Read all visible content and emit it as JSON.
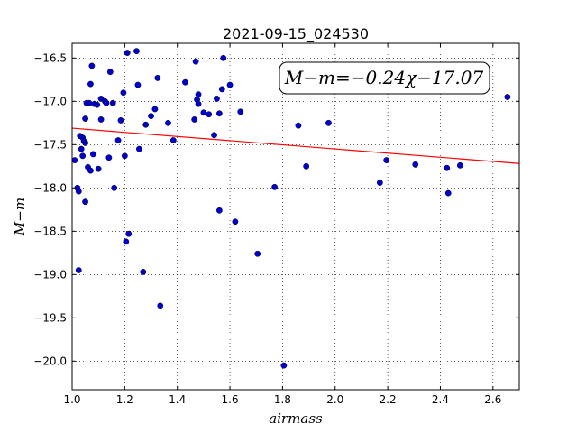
{
  "chart_data": {
    "type": "scatter",
    "title": "2021-09-15_024530",
    "xlabel": "airmass",
    "ylabel": "M−m",
    "xlim": [
      1.0,
      2.7
    ],
    "ylim": [
      -20.33,
      -16.33
    ],
    "xticks": [
      1.0,
      1.2,
      1.4,
      1.6,
      1.8,
      2.0,
      2.2,
      2.4,
      2.6
    ],
    "yticks": [
      -16.5,
      -17.0,
      -17.5,
      -18.0,
      -18.5,
      -19.0,
      -19.5,
      -20.0
    ],
    "xtick_labels": [
      "1.0",
      "1.2",
      "1.4",
      "1.6",
      "1.8",
      "2.0",
      "2.2",
      "2.4",
      "2.6"
    ],
    "ytick_labels": [
      "−16.5",
      "−17.0",
      "−17.5",
      "−18.0",
      "−18.5",
      "−19.0",
      "−19.5",
      "−20.0"
    ],
    "grid": true,
    "annotation": "M−m=−0.24χ−17.07",
    "fit": {
      "slope": -0.24,
      "intercept": -17.07,
      "color": "#ff0000"
    },
    "point_color": "#0000cc",
    "points": [
      [
        1.01,
        -17.68
      ],
      [
        1.02,
        -18.0
      ],
      [
        1.025,
        -18.04
      ],
      [
        1.025,
        -18.95
      ],
      [
        1.03,
        -17.4
      ],
      [
        1.035,
        -17.55
      ],
      [
        1.04,
        -17.63
      ],
      [
        1.04,
        -17.42
      ],
      [
        1.045,
        -17.46
      ],
      [
        1.05,
        -17.48
      ],
      [
        1.05,
        -17.2
      ],
      [
        1.05,
        -18.16
      ],
      [
        1.055,
        -17.02
      ],
      [
        1.06,
        -17.76
      ],
      [
        1.065,
        -17.02
      ],
      [
        1.07,
        -16.8
      ],
      [
        1.07,
        -17.8
      ],
      [
        1.075,
        -16.59
      ],
      [
        1.08,
        -17.61
      ],
      [
        1.085,
        -17.03
      ],
      [
        1.095,
        -17.04
      ],
      [
        1.1,
        -17.78
      ],
      [
        1.11,
        -16.97
      ],
      [
        1.11,
        -17.21
      ],
      [
        1.125,
        -17.0
      ],
      [
        1.13,
        -17.02
      ],
      [
        1.14,
        -17.65
      ],
      [
        1.145,
        -16.66
      ],
      [
        1.155,
        -17.02
      ],
      [
        1.16,
        -18.0
      ],
      [
        1.175,
        -17.45
      ],
      [
        1.185,
        -17.22
      ],
      [
        1.195,
        -16.9
      ],
      [
        1.2,
        -17.63
      ],
      [
        1.205,
        -18.62
      ],
      [
        1.21,
        -16.44
      ],
      [
        1.215,
        -18.53
      ],
      [
        1.245,
        -16.42
      ],
      [
        1.25,
        -16.81
      ],
      [
        1.255,
        -17.55
      ],
      [
        1.27,
        -18.97
      ],
      [
        1.28,
        -17.27
      ],
      [
        1.3,
        -17.17
      ],
      [
        1.315,
        -17.09
      ],
      [
        1.325,
        -16.73
      ],
      [
        1.335,
        -19.36
      ],
      [
        1.365,
        -17.25
      ],
      [
        1.385,
        -17.45
      ],
      [
        1.43,
        -16.78
      ],
      [
        1.465,
        -17.21
      ],
      [
        1.47,
        -16.54
      ],
      [
        1.475,
        -16.98
      ],
      [
        1.48,
        -16.92
      ],
      [
        1.48,
        -17.03
      ],
      [
        1.5,
        -17.13
      ],
      [
        1.52,
        -17.15
      ],
      [
        1.54,
        -17.39
      ],
      [
        1.55,
        -16.97
      ],
      [
        1.56,
        -17.14
      ],
      [
        1.56,
        -18.26
      ],
      [
        1.57,
        -16.86
      ],
      [
        1.575,
        -16.5
      ],
      [
        1.6,
        -16.81
      ],
      [
        1.62,
        -18.39
      ],
      [
        1.64,
        -17.12
      ],
      [
        1.705,
        -18.76
      ],
      [
        1.77,
        -17.99
      ],
      [
        1.805,
        -20.05
      ],
      [
        1.86,
        -17.28
      ],
      [
        1.89,
        -17.75
      ],
      [
        1.975,
        -17.25
      ],
      [
        2.17,
        -17.94
      ],
      [
        2.195,
        -17.68
      ],
      [
        2.305,
        -17.73
      ],
      [
        2.425,
        -17.77
      ],
      [
        2.43,
        -18.06
      ],
      [
        2.475,
        -17.74
      ],
      [
        2.655,
        -16.95
      ]
    ]
  }
}
